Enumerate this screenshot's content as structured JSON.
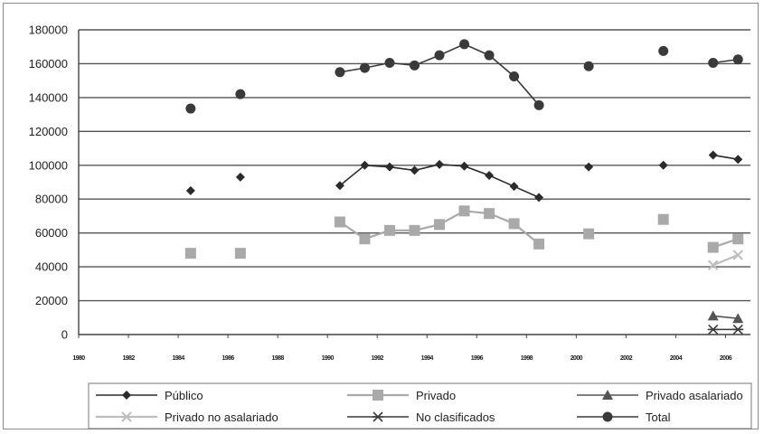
{
  "chart_data": {
    "type": "line",
    "title": "",
    "xlabel": "",
    "ylabel": "",
    "ylim": [
      0,
      180000
    ],
    "xlim": [
      1980,
      2007
    ],
    "y_ticks": [
      "0",
      "20000",
      "40000",
      "60000",
      "80000",
      "100000",
      "120000",
      "140000",
      "160000",
      "180000"
    ],
    "x_ticks": [
      1980,
      1982,
      1984,
      1986,
      1988,
      1990,
      1992,
      1994,
      1996,
      1998,
      2000,
      2002,
      2004,
      2006
    ],
    "x_tick_labels": [
      "1980",
      "1982",
      "1984",
      "1986",
      "1988",
      "1990",
      "1992",
      "1994",
      "1996",
      "1998",
      "2000",
      "2002",
      "2004",
      "2006"
    ],
    "grid": "horizontal",
    "legend_placement": "bottom",
    "series": [
      {
        "name": "Público",
        "color": "#2b2b2b",
        "marker": "diamond",
        "points": [
          {
            "x": 1984.5,
            "y": 85000
          },
          {
            "x": 1986.5,
            "y": 93000
          },
          {
            "x": 1990.5,
            "y": 88000
          },
          {
            "x": 1991.5,
            "y": 100000
          },
          {
            "x": 1992.5,
            "y": 99000
          },
          {
            "x": 1993.5,
            "y": 97000
          },
          {
            "x": 1994.5,
            "y": 100500
          },
          {
            "x": 1995.5,
            "y": 99500
          },
          {
            "x": 1996.5,
            "y": 94000
          },
          {
            "x": 1997.5,
            "y": 87500
          },
          {
            "x": 1998.5,
            "y": 81000
          },
          {
            "x": 2000.5,
            "y": 99000
          },
          {
            "x": 2003.5,
            "y": 100000
          },
          {
            "x": 2005.5,
            "y": 106000
          },
          {
            "x": 2006.5,
            "y": 103500
          }
        ],
        "segments": [
          [
            2,
            3,
            4,
            5,
            6,
            7,
            8,
            9,
            10
          ],
          [
            13,
            14
          ]
        ]
      },
      {
        "name": "Privado",
        "color": "#a9a9a9",
        "marker": "square",
        "points": [
          {
            "x": 1984.5,
            "y": 48000
          },
          {
            "x": 1986.5,
            "y": 48000
          },
          {
            "x": 1990.5,
            "y": 66500
          },
          {
            "x": 1991.5,
            "y": 56500
          },
          {
            "x": 1992.5,
            "y": 61500
          },
          {
            "x": 1993.5,
            "y": 61500
          },
          {
            "x": 1994.5,
            "y": 65000
          },
          {
            "x": 1995.5,
            "y": 73000
          },
          {
            "x": 1996.5,
            "y": 71500
          },
          {
            "x": 1997.5,
            "y": 65500
          },
          {
            "x": 1998.5,
            "y": 53500
          },
          {
            "x": 2000.5,
            "y": 59500
          },
          {
            "x": 2003.5,
            "y": 68000
          },
          {
            "x": 2005.5,
            "y": 51500
          },
          {
            "x": 2006.5,
            "y": 56500
          }
        ],
        "segments": [
          [
            2,
            3,
            4,
            5,
            6,
            7,
            8,
            9,
            10
          ],
          [
            13,
            14
          ]
        ]
      },
      {
        "name": "Privado asalariado",
        "color": "#555555",
        "marker": "triangle",
        "points": [
          {
            "x": 2005.5,
            "y": 11000
          },
          {
            "x": 2006.5,
            "y": 9500
          }
        ],
        "segments": [
          [
            0,
            1
          ]
        ]
      },
      {
        "name": "Privado no asalariado",
        "color": "#bdbdbd",
        "marker": "x",
        "points": [
          {
            "x": 2005.5,
            "y": 41000
          },
          {
            "x": 2006.5,
            "y": 47000
          }
        ],
        "segments": [
          [
            0,
            1
          ]
        ]
      },
      {
        "name": "No clasificados",
        "color": "#3a3a3a",
        "marker": "asterisk",
        "points": [
          {
            "x": 2005.5,
            "y": 3000
          },
          {
            "x": 2006.5,
            "y": 3000
          }
        ],
        "segments": [
          [
            0,
            1
          ]
        ]
      },
      {
        "name": "Total",
        "color": "#3a3a3a",
        "marker": "circle",
        "points": [
          {
            "x": 1984.5,
            "y": 133500
          },
          {
            "x": 1986.5,
            "y": 142000
          },
          {
            "x": 1990.5,
            "y": 155000
          },
          {
            "x": 1991.5,
            "y": 157500
          },
          {
            "x": 1992.5,
            "y": 160500
          },
          {
            "x": 1993.5,
            "y": 159000
          },
          {
            "x": 1994.5,
            "y": 165000
          },
          {
            "x": 1995.5,
            "y": 171500
          },
          {
            "x": 1996.5,
            "y": 165000
          },
          {
            "x": 1997.5,
            "y": 152500
          },
          {
            "x": 1998.5,
            "y": 135500
          },
          {
            "x": 2000.5,
            "y": 158500
          },
          {
            "x": 2003.5,
            "y": 167500
          },
          {
            "x": 2005.5,
            "y": 160500
          },
          {
            "x": 2006.5,
            "y": 162500
          }
        ],
        "segments": [
          [
            2,
            3,
            4,
            5,
            6,
            7,
            8,
            9,
            10
          ],
          [
            13,
            14
          ]
        ]
      }
    ]
  }
}
